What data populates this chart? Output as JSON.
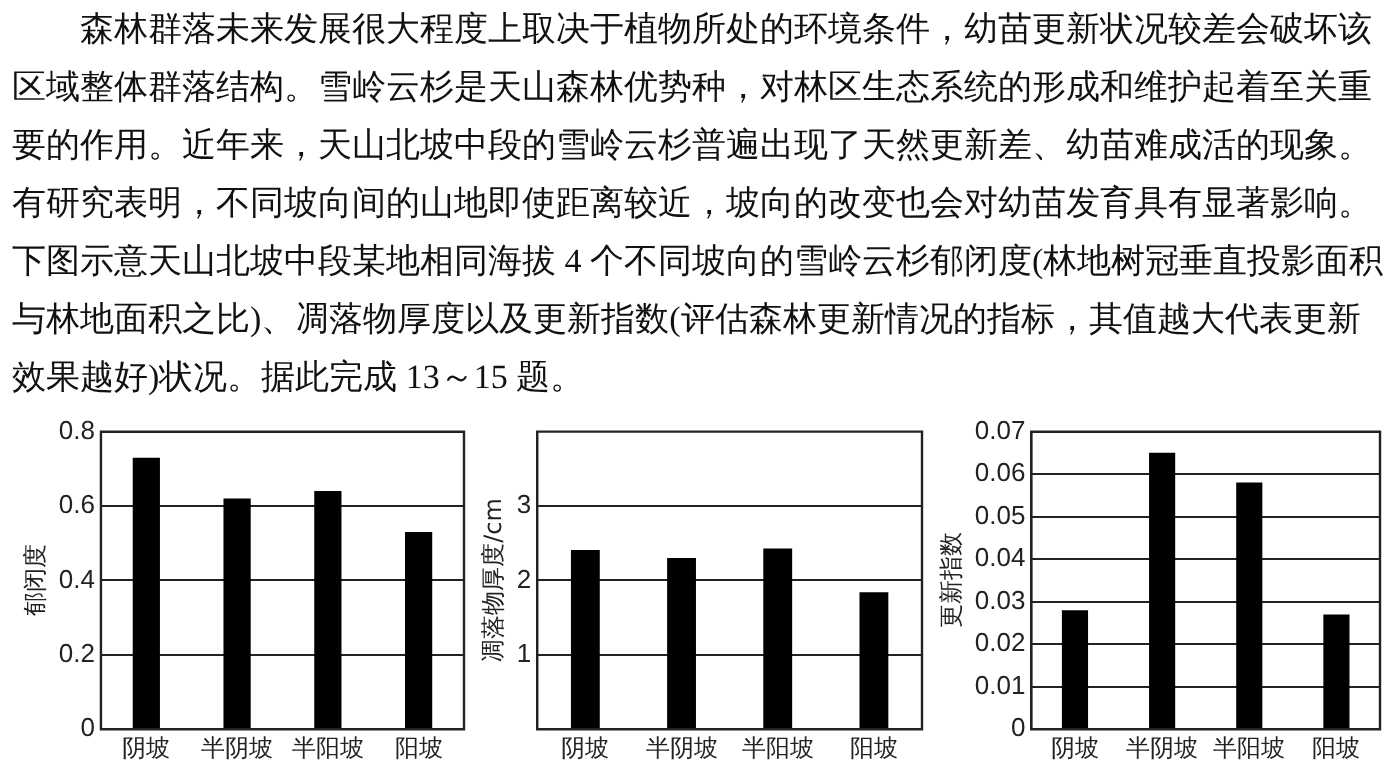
{
  "chart_data": [
    {
      "type": "other",
      "annotations": [
        "森林群落未来发展很大程度上取决于植物所处的环境条件，幼苗更新状况较差会破坏该区域整体群落结构。雪岭云杉是天山森林优势种，对林区生态系统的形成和维护起着至关重要的作用。近年来，天山北坡中段的雪岭云杉普遍出现了天然更新差、幼苗难成活的现象。有研究表明，不同坡向间的山地即使距离较近，坡向的改变也会对幼苗发育具有显著影响。下图示意天山北坡中段某地相同海拔 4 个不同坡向的雪岭云杉郁闭度(林地树冠垂直投影面积与林地面积之比)、凋落物厚度以及更新指数(评估森林更新情况的指标，其值越大代表更新效果越好)状况。据此完成 13～15 题。"
      ]
    },
    {
      "type": "bar",
      "categories": [
        "阴坡",
        "半阴坡",
        "半阳坡",
        "阳坡"
      ],
      "values": [
        0.73,
        0.62,
        0.64,
        0.53
      ],
      "color": "#000000",
      "ylabel": "郁闭度",
      "ylim": [
        0,
        0.8
      ],
      "yticks": [
        0,
        0.2,
        0.4,
        0.6,
        0.8
      ],
      "grid": "y"
    },
    {
      "type": "bar",
      "categories": [
        "阴坡",
        "半阴坡",
        "半阳坡",
        "阳坡"
      ],
      "values": [
        2.41,
        2.3,
        2.43,
        1.84
      ],
      "color": "#000000",
      "ylabel": "凋落物厚度/cm",
      "ylim": [
        0,
        4
      ],
      "yticks": [
        1,
        2,
        3
      ],
      "grid": "y"
    },
    {
      "type": "bar",
      "categories": [
        "阴坡",
        "半阴坡",
        "半阳坡",
        "阳坡"
      ],
      "values": [
        0.028,
        0.065,
        0.058,
        0.027
      ],
      "color": "#000000",
      "ylabel": "更新指数",
      "ylim": [
        0,
        0.07
      ],
      "yticks": [
        0,
        0.01,
        0.02,
        0.03,
        0.04,
        0.05,
        0.06,
        0.07
      ],
      "grid": "y"
    }
  ]
}
